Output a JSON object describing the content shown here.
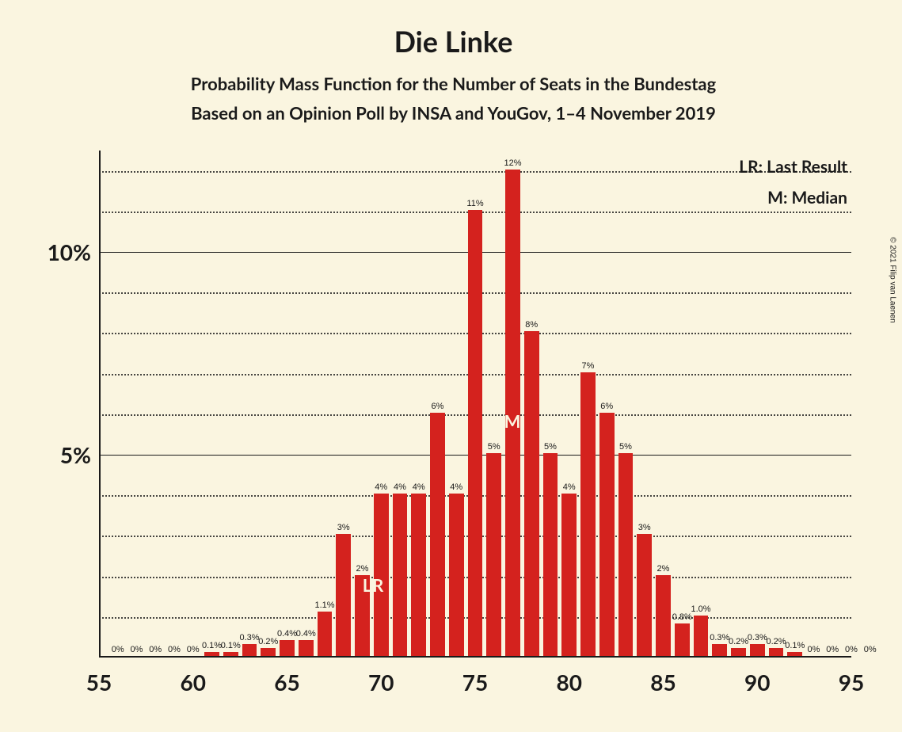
{
  "chart": {
    "type": "bar",
    "title": "Die Linke",
    "subtitle1": "Probability Mass Function for the Number of Seats in the Bundestag",
    "subtitle2": "Based on an Opinion Poll by INSA and YouGov, 1–4 November 2019",
    "legend": {
      "lr": "LR: Last Result",
      "m": "M: Median"
    },
    "copyright": "© 2021 Filip van Laenen",
    "background_color": "#faf5e0",
    "bar_color": "#d4221e",
    "text_color": "#1a1a1a",
    "marker_text_color": "#faf5e0",
    "xlim": [
      55,
      95
    ],
    "ylim": [
      0,
      12.5
    ],
    "x_ticks": [
      55,
      60,
      65,
      70,
      75,
      80,
      85,
      90,
      95
    ],
    "y_ticks": [
      {
        "value": 5,
        "label": "5%"
      },
      {
        "value": 10,
        "label": "10%"
      }
    ],
    "minor_gridlines": [
      1,
      2,
      3,
      4,
      6,
      7,
      8,
      9,
      11,
      12
    ],
    "bar_width_ratio": 0.78,
    "bars": [
      {
        "x": 56,
        "value": 0,
        "label": "0%"
      },
      {
        "x": 57,
        "value": 0,
        "label": "0%"
      },
      {
        "x": 58,
        "value": 0,
        "label": "0%"
      },
      {
        "x": 59,
        "value": 0,
        "label": "0%"
      },
      {
        "x": 60,
        "value": 0,
        "label": "0%"
      },
      {
        "x": 61,
        "value": 0.1,
        "label": "0.1%"
      },
      {
        "x": 62,
        "value": 0.1,
        "label": "0.1%"
      },
      {
        "x": 63,
        "value": 0.3,
        "label": "0.3%"
      },
      {
        "x": 64,
        "value": 0.2,
        "label": "0.2%"
      },
      {
        "x": 65,
        "value": 0.4,
        "label": "0.4%"
      },
      {
        "x": 66,
        "value": 0.4,
        "label": "0.4%"
      },
      {
        "x": 67,
        "value": 1.1,
        "label": "1.1%"
      },
      {
        "x": 68,
        "value": 3,
        "label": "3%"
      },
      {
        "x": 69,
        "value": 2,
        "label": "2%"
      },
      {
        "x": 70,
        "value": 4,
        "label": "4%"
      },
      {
        "x": 71,
        "value": 4,
        "label": "4%"
      },
      {
        "x": 72,
        "value": 4,
        "label": "4%"
      },
      {
        "x": 73,
        "value": 6,
        "label": "6%"
      },
      {
        "x": 74,
        "value": 4,
        "label": "4%"
      },
      {
        "x": 75,
        "value": 11,
        "label": "11%"
      },
      {
        "x": 76,
        "value": 5,
        "label": "5%"
      },
      {
        "x": 77,
        "value": 12,
        "label": "12%"
      },
      {
        "x": 78,
        "value": 8,
        "label": "8%"
      },
      {
        "x": 79,
        "value": 5,
        "label": "5%"
      },
      {
        "x": 80,
        "value": 4,
        "label": "4%"
      },
      {
        "x": 81,
        "value": 7,
        "label": "7%"
      },
      {
        "x": 82,
        "value": 6,
        "label": "6%"
      },
      {
        "x": 83,
        "value": 5,
        "label": "5%"
      },
      {
        "x": 84,
        "value": 3,
        "label": "3%"
      },
      {
        "x": 85,
        "value": 2,
        "label": "2%"
      },
      {
        "x": 86,
        "value": 0.8,
        "label": "0.8%"
      },
      {
        "x": 87,
        "value": 1.0,
        "label": "1.0%"
      },
      {
        "x": 88,
        "value": 0.3,
        "label": "0.3%"
      },
      {
        "x": 89,
        "value": 0.2,
        "label": "0.2%"
      },
      {
        "x": 90,
        "value": 0.3,
        "label": "0.3%"
      },
      {
        "x": 91,
        "value": 0.2,
        "label": "0.2%"
      },
      {
        "x": 92,
        "value": 0.1,
        "label": "0.1%"
      },
      {
        "x": 93,
        "value": 0,
        "label": "0%"
      },
      {
        "x": 94,
        "value": 0,
        "label": "0%"
      },
      {
        "x": 95,
        "value": 0,
        "label": "0%"
      },
      {
        "x": 96,
        "value": 0,
        "label": "0%"
      }
    ],
    "markers": {
      "lr": {
        "x": 69,
        "y": 2,
        "label": "LR"
      },
      "m": {
        "x": 77,
        "y": 6,
        "label": "M"
      }
    }
  }
}
